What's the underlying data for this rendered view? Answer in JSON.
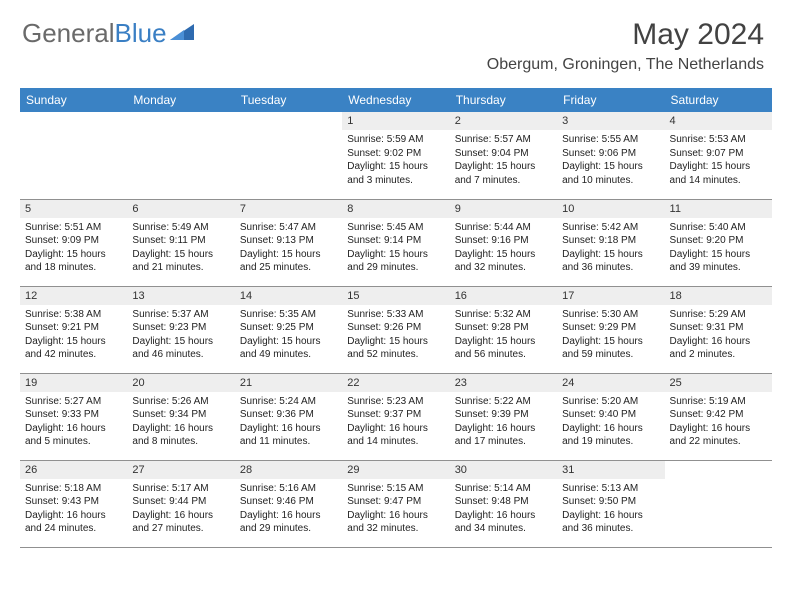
{
  "logo": {
    "text1": "General",
    "text2": "Blue"
  },
  "title": "May 2024",
  "location": "Obergum, Groningen, The Netherlands",
  "colors": {
    "header_bg": "#3a82c4",
    "daynum_bg": "#eeeeee",
    "border": "#909090"
  },
  "weekdays": [
    "Sunday",
    "Monday",
    "Tuesday",
    "Wednesday",
    "Thursday",
    "Friday",
    "Saturday"
  ],
  "weeks": [
    [
      {
        "n": "",
        "sr": "",
        "ss": "",
        "dl": ""
      },
      {
        "n": "",
        "sr": "",
        "ss": "",
        "dl": ""
      },
      {
        "n": "",
        "sr": "",
        "ss": "",
        "dl": ""
      },
      {
        "n": "1",
        "sr": "Sunrise: 5:59 AM",
        "ss": "Sunset: 9:02 PM",
        "dl": "Daylight: 15 hours and 3 minutes."
      },
      {
        "n": "2",
        "sr": "Sunrise: 5:57 AM",
        "ss": "Sunset: 9:04 PM",
        "dl": "Daylight: 15 hours and 7 minutes."
      },
      {
        "n": "3",
        "sr": "Sunrise: 5:55 AM",
        "ss": "Sunset: 9:06 PM",
        "dl": "Daylight: 15 hours and 10 minutes."
      },
      {
        "n": "4",
        "sr": "Sunrise: 5:53 AM",
        "ss": "Sunset: 9:07 PM",
        "dl": "Daylight: 15 hours and 14 minutes."
      }
    ],
    [
      {
        "n": "5",
        "sr": "Sunrise: 5:51 AM",
        "ss": "Sunset: 9:09 PM",
        "dl": "Daylight: 15 hours and 18 minutes."
      },
      {
        "n": "6",
        "sr": "Sunrise: 5:49 AM",
        "ss": "Sunset: 9:11 PM",
        "dl": "Daylight: 15 hours and 21 minutes."
      },
      {
        "n": "7",
        "sr": "Sunrise: 5:47 AM",
        "ss": "Sunset: 9:13 PM",
        "dl": "Daylight: 15 hours and 25 minutes."
      },
      {
        "n": "8",
        "sr": "Sunrise: 5:45 AM",
        "ss": "Sunset: 9:14 PM",
        "dl": "Daylight: 15 hours and 29 minutes."
      },
      {
        "n": "9",
        "sr": "Sunrise: 5:44 AM",
        "ss": "Sunset: 9:16 PM",
        "dl": "Daylight: 15 hours and 32 minutes."
      },
      {
        "n": "10",
        "sr": "Sunrise: 5:42 AM",
        "ss": "Sunset: 9:18 PM",
        "dl": "Daylight: 15 hours and 36 minutes."
      },
      {
        "n": "11",
        "sr": "Sunrise: 5:40 AM",
        "ss": "Sunset: 9:20 PM",
        "dl": "Daylight: 15 hours and 39 minutes."
      }
    ],
    [
      {
        "n": "12",
        "sr": "Sunrise: 5:38 AM",
        "ss": "Sunset: 9:21 PM",
        "dl": "Daylight: 15 hours and 42 minutes."
      },
      {
        "n": "13",
        "sr": "Sunrise: 5:37 AM",
        "ss": "Sunset: 9:23 PM",
        "dl": "Daylight: 15 hours and 46 minutes."
      },
      {
        "n": "14",
        "sr": "Sunrise: 5:35 AM",
        "ss": "Sunset: 9:25 PM",
        "dl": "Daylight: 15 hours and 49 minutes."
      },
      {
        "n": "15",
        "sr": "Sunrise: 5:33 AM",
        "ss": "Sunset: 9:26 PM",
        "dl": "Daylight: 15 hours and 52 minutes."
      },
      {
        "n": "16",
        "sr": "Sunrise: 5:32 AM",
        "ss": "Sunset: 9:28 PM",
        "dl": "Daylight: 15 hours and 56 minutes."
      },
      {
        "n": "17",
        "sr": "Sunrise: 5:30 AM",
        "ss": "Sunset: 9:29 PM",
        "dl": "Daylight: 15 hours and 59 minutes."
      },
      {
        "n": "18",
        "sr": "Sunrise: 5:29 AM",
        "ss": "Sunset: 9:31 PM",
        "dl": "Daylight: 16 hours and 2 minutes."
      }
    ],
    [
      {
        "n": "19",
        "sr": "Sunrise: 5:27 AM",
        "ss": "Sunset: 9:33 PM",
        "dl": "Daylight: 16 hours and 5 minutes."
      },
      {
        "n": "20",
        "sr": "Sunrise: 5:26 AM",
        "ss": "Sunset: 9:34 PM",
        "dl": "Daylight: 16 hours and 8 minutes."
      },
      {
        "n": "21",
        "sr": "Sunrise: 5:24 AM",
        "ss": "Sunset: 9:36 PM",
        "dl": "Daylight: 16 hours and 11 minutes."
      },
      {
        "n": "22",
        "sr": "Sunrise: 5:23 AM",
        "ss": "Sunset: 9:37 PM",
        "dl": "Daylight: 16 hours and 14 minutes."
      },
      {
        "n": "23",
        "sr": "Sunrise: 5:22 AM",
        "ss": "Sunset: 9:39 PM",
        "dl": "Daylight: 16 hours and 17 minutes."
      },
      {
        "n": "24",
        "sr": "Sunrise: 5:20 AM",
        "ss": "Sunset: 9:40 PM",
        "dl": "Daylight: 16 hours and 19 minutes."
      },
      {
        "n": "25",
        "sr": "Sunrise: 5:19 AM",
        "ss": "Sunset: 9:42 PM",
        "dl": "Daylight: 16 hours and 22 minutes."
      }
    ],
    [
      {
        "n": "26",
        "sr": "Sunrise: 5:18 AM",
        "ss": "Sunset: 9:43 PM",
        "dl": "Daylight: 16 hours and 24 minutes."
      },
      {
        "n": "27",
        "sr": "Sunrise: 5:17 AM",
        "ss": "Sunset: 9:44 PM",
        "dl": "Daylight: 16 hours and 27 minutes."
      },
      {
        "n": "28",
        "sr": "Sunrise: 5:16 AM",
        "ss": "Sunset: 9:46 PM",
        "dl": "Daylight: 16 hours and 29 minutes."
      },
      {
        "n": "29",
        "sr": "Sunrise: 5:15 AM",
        "ss": "Sunset: 9:47 PM",
        "dl": "Daylight: 16 hours and 32 minutes."
      },
      {
        "n": "30",
        "sr": "Sunrise: 5:14 AM",
        "ss": "Sunset: 9:48 PM",
        "dl": "Daylight: 16 hours and 34 minutes."
      },
      {
        "n": "31",
        "sr": "Sunrise: 5:13 AM",
        "ss": "Sunset: 9:50 PM",
        "dl": "Daylight: 16 hours and 36 minutes."
      },
      {
        "n": "",
        "sr": "",
        "ss": "",
        "dl": ""
      }
    ]
  ]
}
